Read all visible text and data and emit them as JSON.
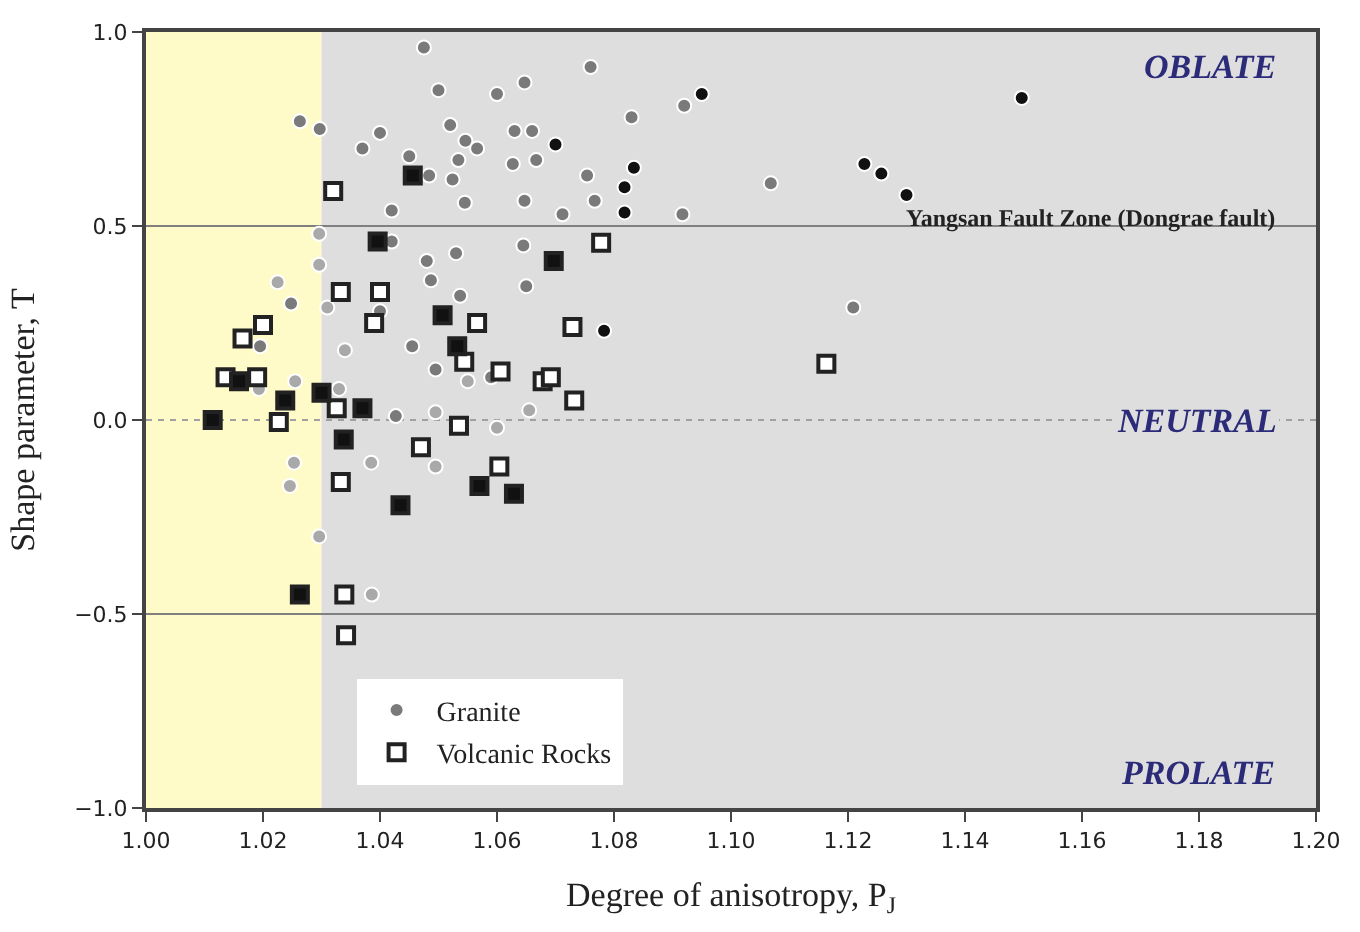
{
  "chart_data": {
    "type": "scatter",
    "xlabel": "Degree of anisotropy, P$_{J}$",
    "ylabel": "Shape parameter, T",
    "xlim": [
      1.0,
      1.2
    ],
    "xticks": [
      {
        "value": 1.0,
        "label": "1.00"
      },
      {
        "value": 1.02,
        "label": "1.02"
      },
      {
        "value": 1.04,
        "label": "1.04"
      },
      {
        "value": 1.06,
        "label": "1.06"
      },
      {
        "value": 1.08,
        "label": "1.08"
      },
      {
        "value": 1.1,
        "label": "1.10"
      },
      {
        "value": 1.12,
        "label": "1.12"
      },
      {
        "value": 1.14,
        "label": "1.14"
      },
      {
        "value": 1.16,
        "label": "1.16"
      },
      {
        "value": 1.18,
        "label": "1.18"
      },
      {
        "value": 1.2,
        "label": "1.20"
      }
    ],
    "ylim": [
      -1.0,
      1.0
    ],
    "yticks": [
      {
        "value": -1.0,
        "label": "−1.0"
      },
      {
        "value": -0.5,
        "label": "−0.5"
      },
      {
        "value": 0.0,
        "label": "0.0"
      },
      {
        "value": 0.5,
        "label": "0.5"
      },
      {
        "value": 1.0,
        "label": "1.0"
      }
    ],
    "grid": false,
    "legend": "bottom left",
    "bands": [
      {
        "axis": "x",
        "from": 1.0,
        "to": 1.03,
        "color": "#fffbc8"
      },
      {
        "axis": "x",
        "from": 1.03,
        "to": 1.2,
        "color": "#dedede"
      }
    ],
    "ref_lines": [
      {
        "axis": "y",
        "value": 0.5,
        "color": "#808080",
        "line_style": "solid"
      },
      {
        "axis": "y",
        "value": -0.5,
        "color": "#808080",
        "line_style": "solid"
      },
      {
        "axis": "y",
        "value": 0.0,
        "label": "NEUTRAL",
        "color": "#a0a0a0",
        "line_style": "dotted"
      }
    ],
    "annotations": [
      "OBLATE",
      "PROLATE",
      "Yangsan Fault Zone (Dongrae fault)"
    ],
    "series": [
      {
        "color": "#a9a9a9",
        "marker": "circle",
        "x": [
          1.0296,
          1.0296,
          1.0225,
          1.031,
          1.034,
          1.055,
          1.0193,
          1.0255,
          1.033,
          1.0495,
          1.06,
          1.0385,
          1.0495,
          1.0253,
          1.0246,
          1.0296,
          1.0386,
          1.0655
        ],
        "values": [
          0.48,
          0.4,
          0.355,
          0.29,
          0.18,
          0.1,
          0.08,
          0.1,
          0.08,
          0.02,
          -0.02,
          -0.11,
          -0.12,
          -0.11,
          -0.17,
          -0.3,
          -0.45,
          0.025
        ]
      },
      {
        "name": "Granite",
        "color": "#7a7a7a",
        "marker": "circle",
        "x": [
          1.0263,
          1.0297,
          1.0475,
          1.05,
          1.06,
          1.037,
          1.04,
          1.052,
          1.0546,
          1.0566,
          1.0534,
          1.045,
          1.0484,
          1.0524,
          1.0545,
          1.042,
          1.0627,
          1.042,
          1.0248,
          1.04,
          1.048,
          1.0487,
          1.053,
          1.0537,
          1.0455,
          1.0495,
          1.059,
          1.0195,
          1.0427,
          1.0647,
          1.076,
          1.092,
          1.083,
          1.063,
          1.066,
          1.0667,
          1.0754,
          1.0647,
          1.0767,
          1.0712,
          1.0917,
          1.1068,
          1.0645,
          1.065,
          1.1209
        ],
        "values": [
          0.77,
          0.75,
          0.96,
          0.85,
          0.84,
          0.7,
          0.74,
          0.76,
          0.72,
          0.7,
          0.67,
          0.68,
          0.63,
          0.62,
          0.56,
          0.54,
          0.66,
          0.46,
          0.3,
          0.28,
          0.41,
          0.36,
          0.43,
          0.32,
          0.19,
          0.13,
          0.11,
          0.19,
          0.01,
          0.87,
          0.91,
          0.81,
          0.78,
          0.745,
          0.745,
          0.67,
          0.63,
          0.565,
          0.565,
          0.53,
          0.53,
          0.61,
          0.45,
          0.345,
          0.29
        ]
      },
      {
        "color": "#111111",
        "marker": "circle",
        "x": [
          1.07,
          1.095,
          1.0834,
          1.0818,
          1.0818,
          1.1228,
          1.1257,
          1.13,
          1.1497,
          1.0783
        ],
        "values": [
          0.71,
          0.84,
          0.65,
          0.6,
          0.535,
          0.66,
          0.635,
          0.58,
          0.83,
          0.23
        ]
      },
      {
        "name": "Volcanic Rocks",
        "color": "#ffffff",
        "marker": "square",
        "x": [
          1.032,
          1.0333,
          1.04,
          1.039,
          1.0566,
          1.0544,
          1.0606,
          1.0165,
          1.02,
          1.0136,
          1.019,
          1.0326,
          1.0227,
          1.0535,
          1.047,
          1.0604,
          1.0333,
          1.0339,
          1.0342,
          1.0778,
          1.0729,
          1.1163,
          1.0678,
          1.0692,
          1.0732
        ],
        "values": [
          0.59,
          0.33,
          0.33,
          0.25,
          0.25,
          0.15,
          0.125,
          0.21,
          0.245,
          0.11,
          0.11,
          0.03,
          -0.005,
          -0.015,
          -0.07,
          -0.12,
          -0.16,
          -0.45,
          -0.555,
          0.457,
          0.24,
          0.145,
          0.1,
          0.11,
          0.05
        ]
      },
      {
        "color": "#111111",
        "marker": "square",
        "x": [
          1.0456,
          1.0396,
          1.0507,
          1.0532,
          1.0159,
          1.0238,
          1.03,
          1.037,
          1.0114,
          1.0338,
          1.057,
          1.0629,
          1.0435,
          1.0263,
          1.0697
        ],
        "values": [
          0.63,
          0.46,
          0.27,
          0.19,
          0.1,
          0.05,
          0.07,
          0.03,
          0.0,
          -0.05,
          -0.17,
          -0.19,
          -0.22,
          -0.45,
          0.41
        ]
      }
    ]
  }
}
